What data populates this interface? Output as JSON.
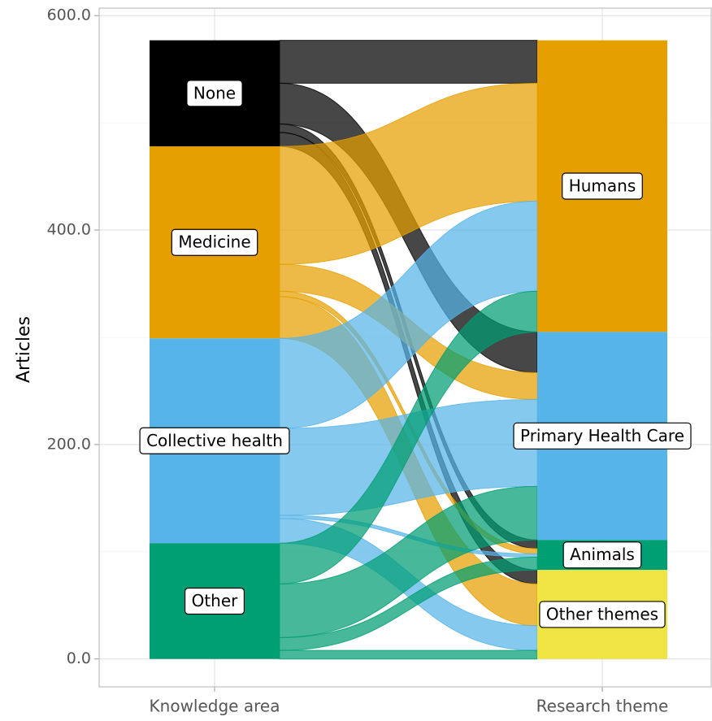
{
  "chart_data": {
    "type": "alluvial",
    "y_label": "Articles",
    "axes": [
      "Knowledge area",
      "Research theme"
    ],
    "ylim": [
      -26,
      607
    ],
    "yticks": [
      {
        "value": 0,
        "label": "0.0"
      },
      {
        "value": 200,
        "label": "200.0"
      },
      {
        "value": 400,
        "label": "400.0"
      },
      {
        "value": 600,
        "label": "600.0"
      }
    ],
    "yminorticks": [
      100,
      300,
      500
    ],
    "grid": true,
    "targets": [
      {
        "name": "Humans",
        "color": "#E69F00"
      },
      {
        "name": "Primary Health Care",
        "color": "#56B4E9"
      },
      {
        "name": "Animals",
        "color": "#009E73"
      },
      {
        "name": "Other themes",
        "color": "#F0E442"
      }
    ],
    "sources": [
      {
        "name": "None",
        "color": "#000000",
        "values": [
          40,
          38,
          8,
          13
        ]
      },
      {
        "name": "Medicine",
        "color": "#E69F00",
        "values": [
          110,
          25,
          5,
          39
        ]
      },
      {
        "name": "Collective health",
        "color": "#56B4E9",
        "values": [
          84,
          81,
          3,
          23
        ]
      },
      {
        "name": "Other",
        "color": "#009E73",
        "values": [
          38,
          50,
          12,
          8
        ]
      }
    ]
  }
}
